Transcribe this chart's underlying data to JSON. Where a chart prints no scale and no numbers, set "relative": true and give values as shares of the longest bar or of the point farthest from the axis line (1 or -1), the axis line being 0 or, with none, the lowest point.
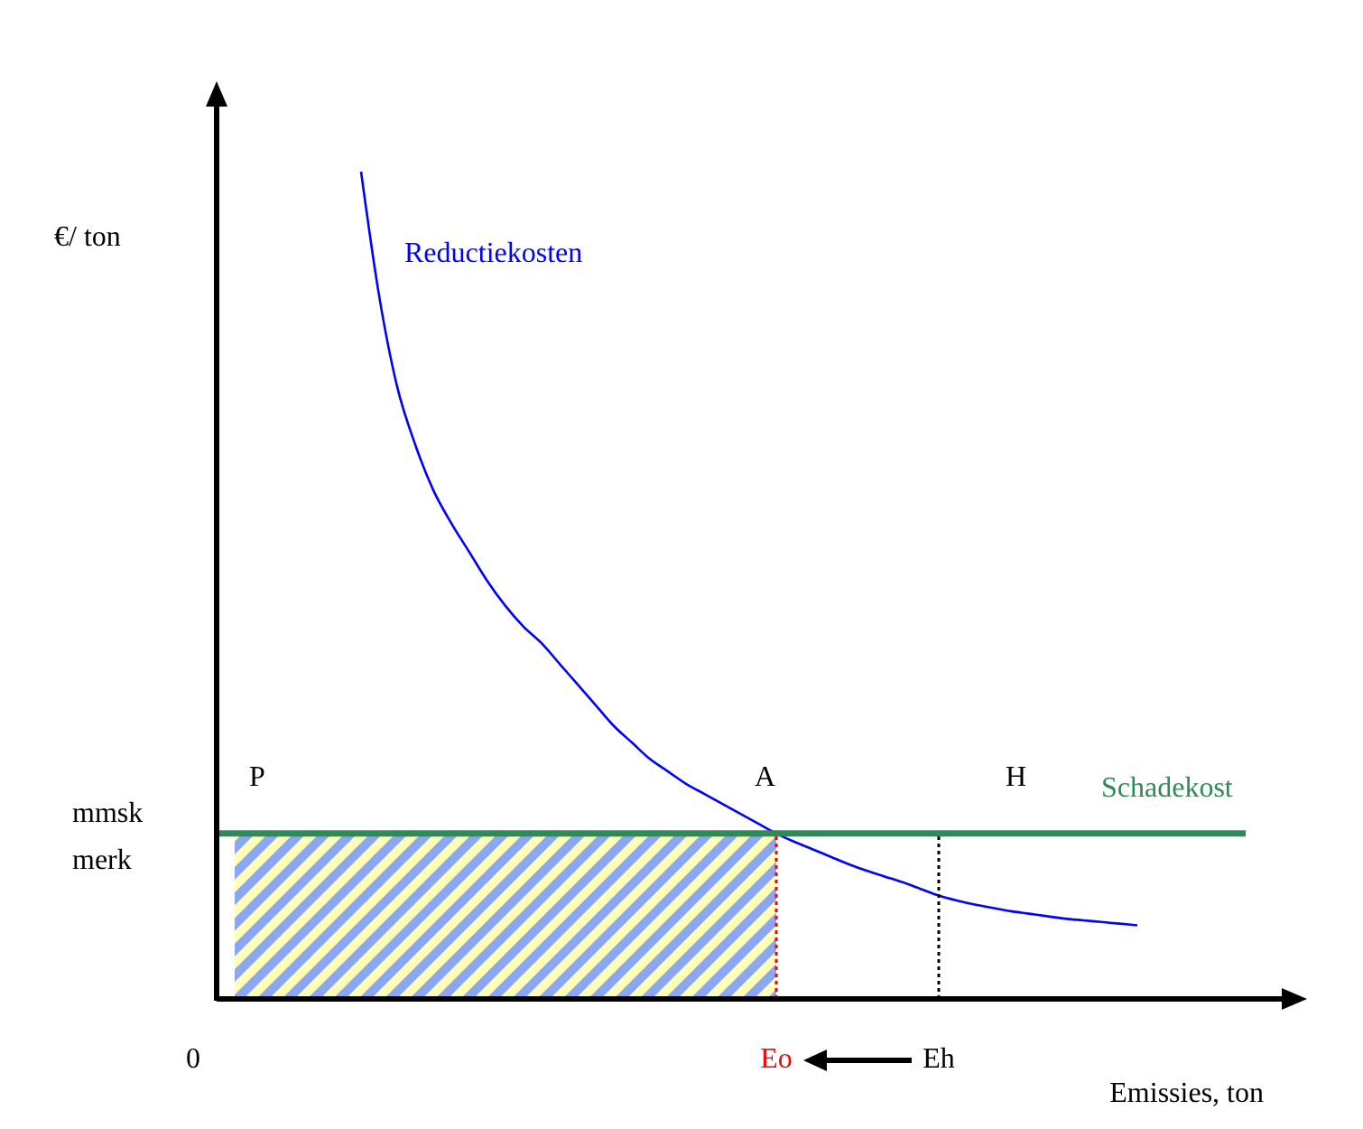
{
  "chart_data": {
    "type": "line",
    "relative": true,
    "ylabel": "€/ ton",
    "xlabel": "Emissies, ton",
    "categories": [
      null,
      null,
      null,
      null,
      null,
      null,
      null,
      null,
      null,
      null,
      null,
      null,
      null,
      null,
      null,
      null,
      null,
      null,
      null,
      null,
      null,
      null,
      null,
      null,
      null,
      null,
      null,
      null,
      null,
      null,
      null,
      "Eo",
      null,
      null,
      null,
      null,
      null,
      null,
      null,
      null,
      "Eh",
      null,
      null,
      null,
      null,
      null,
      null,
      null,
      null,
      null,
      null,
      null,
      null,
      null,
      null,
      null,
      null,
      null,
      null,
      null
    ],
    "series": [
      {
        "name": "Reductiekosten",
        "color": "#0000ff",
        "values": [
          null,
          null,
          null,
          null,
          null,
          null,
          null,
          null,
          1,
          0.85,
          0.74,
          0.67,
          0.615,
          0.575,
          0.54,
          0.505,
          0.475,
          0.45,
          0.43,
          0.405,
          0.38,
          0.355,
          0.33,
          0.31,
          0.29,
          0.275,
          0.26,
          0.248,
          0.236,
          0.224,
          0.212,
          0.2,
          0.19,
          0.181,
          0.172,
          0.163,
          0.155,
          0.148,
          0.141,
          0.133,
          0.125,
          0.119,
          0.114,
          0.11,
          0.106,
          0.103,
          0.1,
          0.097,
          0.095,
          0.093,
          0.091,
          0.089,
          null,
          null,
          null,
          null,
          null,
          null,
          null,
          null
        ]
      },
      {
        "name": "Schadekost",
        "color": "#2e8b57",
        "values": [
          0.2,
          0.2,
          0.2,
          0.2,
          0.2,
          0.2,
          0.2,
          0.2,
          0.2,
          0.2,
          0.2,
          0.2,
          0.2,
          0.2,
          0.2,
          0.2,
          0.2,
          0.2,
          0.2,
          0.2,
          0.2,
          0.2,
          0.2,
          0.2,
          0.2,
          0.2,
          0.2,
          0.2,
          0.2,
          0.2,
          0.2,
          0.2,
          0.2,
          0.2,
          0.2,
          0.2,
          0.2,
          0.2,
          0.2,
          0.2,
          0.2,
          0.2,
          0.2,
          0.2,
          0.2,
          0.2,
          0.2,
          0.2,
          0.2,
          0.2,
          0.2,
          0.2,
          0.2,
          0.2,
          0.2,
          0.2,
          0.2,
          0.2,
          null,
          null
        ]
      },
      {
        "type": "area",
        "color": "#3f6ce8",
        "values": [
          null,
          0.2,
          0.2,
          0.2,
          0.2,
          0.2,
          0.2,
          0.2,
          0.2,
          0.2,
          0.2,
          0.2,
          0.2,
          0.2,
          0.2,
          0.2,
          0.2,
          0.2,
          0.2,
          0.2,
          0.2,
          0.2,
          0.2,
          0.2,
          0.2,
          0.2,
          0.2,
          0.2,
          0.2,
          0.2,
          0.2,
          0.2,
          null,
          null,
          null,
          null,
          null,
          null,
          null,
          null,
          null,
          null,
          null,
          null,
          null,
          null,
          null,
          null,
          null,
          null,
          null,
          null,
          null,
          null,
          null,
          null,
          null,
          null,
          null,
          null
        ]
      }
    ],
    "ref_lines": [
      {
        "axis": "x",
        "value": "Eo",
        "color": "#ff0000",
        "line_style": "dotted"
      },
      {
        "axis": "x",
        "value": "Eh",
        "color": "#000000",
        "line_style": "dotted"
      }
    ],
    "annotations": [
      "P",
      "A",
      "H",
      "mmsk merk",
      "0"
    ],
    "marker": "none",
    "line_style": "solid"
  }
}
